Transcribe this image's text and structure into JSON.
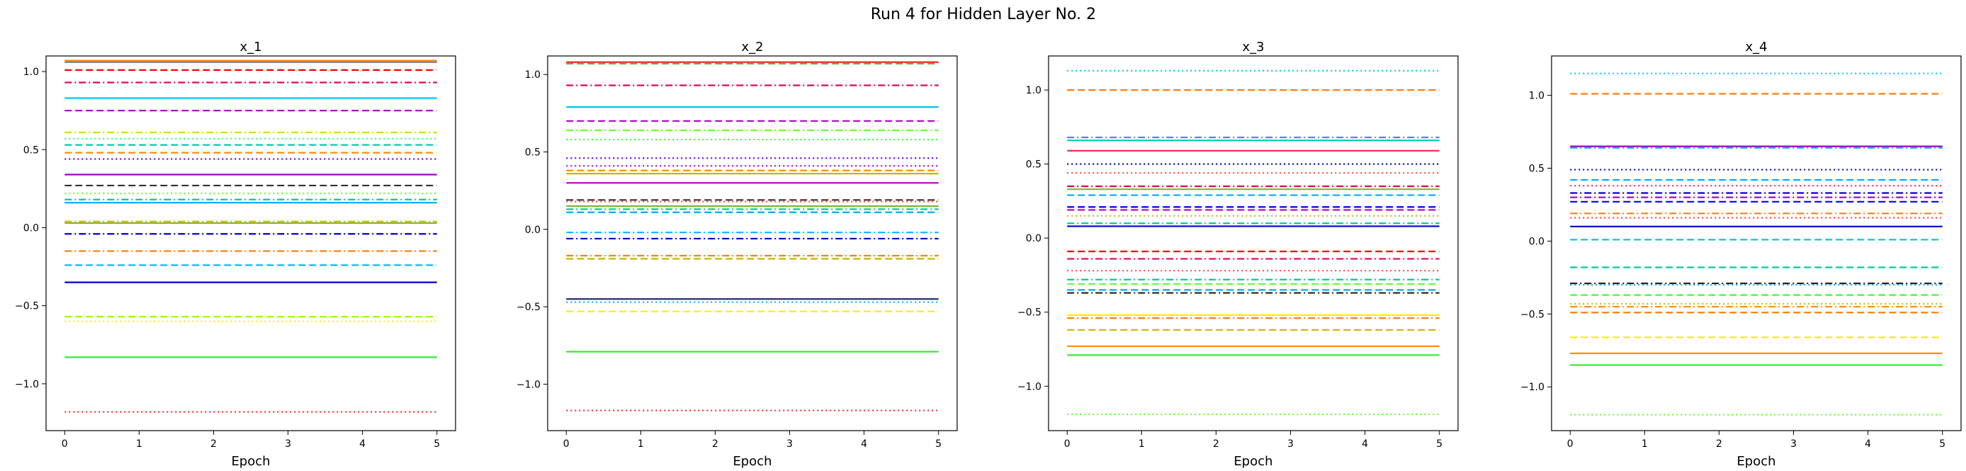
{
  "figure": {
    "title": "Run 4 for Hidden Layer No. 2"
  },
  "chart_data": [
    {
      "type": "line",
      "title": "x_1",
      "xlabel": "Epoch",
      "ylabel": "",
      "xlim": [
        -0.25,
        5.25
      ],
      "ylim": [
        -1.3,
        1.1
      ],
      "xticks": [
        0,
        1,
        2,
        3,
        4,
        5
      ],
      "yticks": [
        -1.0,
        -0.5,
        0.0,
        0.5,
        1.0
      ],
      "yticklabels": [
        "−1.0",
        "−0.5",
        "0.0",
        "0.5",
        "1.0"
      ],
      "x": [
        0,
        5
      ],
      "grid": false,
      "series": [
        {
          "values": [
            1.07,
            1.07
          ],
          "color": "#ff7f0e",
          "style": "solid"
        },
        {
          "values": [
            1.06,
            1.06
          ],
          "color": "#7f7f7f",
          "style": "solid"
        },
        {
          "values": [
            1.01,
            1.01
          ],
          "color": "#ff0000",
          "style": "dashed"
        },
        {
          "values": [
            0.93,
            0.93
          ],
          "color": "#e6005c",
          "style": "dashdot"
        },
        {
          "values": [
            0.83,
            0.83
          ],
          "color": "#00c8ff",
          "style": "solid"
        },
        {
          "values": [
            0.75,
            0.75
          ],
          "color": "#b000c8",
          "style": "dashed"
        },
        {
          "values": [
            0.61,
            0.61
          ],
          "color": "#c8e600",
          "style": "dashdot"
        },
        {
          "values": [
            0.57,
            0.57
          ],
          "color": "#33ff66",
          "style": "dotted"
        },
        {
          "values": [
            0.53,
            0.53
          ],
          "color": "#00ccaa",
          "style": "dashed"
        },
        {
          "values": [
            0.48,
            0.48
          ],
          "color": "#ff8c00",
          "style": "dashed"
        },
        {
          "values": [
            0.44,
            0.44
          ],
          "color": "#6600ff",
          "style": "dotted"
        },
        {
          "values": [
            0.34,
            0.34
          ],
          "color": "#9900cc",
          "style": "solid"
        },
        {
          "values": [
            0.27,
            0.27
          ],
          "color": "#333333",
          "style": "dashed"
        },
        {
          "values": [
            0.22,
            0.22
          ],
          "color": "#66ff33",
          "style": "dotted"
        },
        {
          "values": [
            0.18,
            0.18
          ],
          "color": "#00cc99",
          "style": "dashdot"
        },
        {
          "values": [
            0.16,
            0.16
          ],
          "color": "#00aaff",
          "style": "solid"
        },
        {
          "values": [
            0.04,
            0.04
          ],
          "color": "#e6b800",
          "style": "dashdot"
        },
        {
          "values": [
            0.03,
            0.03
          ],
          "color": "#77bb33",
          "style": "solid"
        },
        {
          "values": [
            -0.04,
            -0.04
          ],
          "color": "#0000cc",
          "style": "dashdot"
        },
        {
          "values": [
            -0.15,
            -0.15
          ],
          "color": "#ff7f0e",
          "style": "dashdot"
        },
        {
          "values": [
            -0.24,
            -0.24
          ],
          "color": "#00bbff",
          "style": "dashed"
        },
        {
          "values": [
            -0.35,
            -0.35
          ],
          "color": "#0000cc",
          "style": "solid"
        },
        {
          "values": [
            -0.57,
            -0.57
          ],
          "color": "#99ff00",
          "style": "dashed"
        },
        {
          "values": [
            -0.6,
            -0.6
          ],
          "color": "#ffee00",
          "style": "dotted"
        },
        {
          "values": [
            -0.83,
            -0.83
          ],
          "color": "#33ee33",
          "style": "solid"
        },
        {
          "values": [
            -1.18,
            -1.18
          ],
          "color": "#ff2222",
          "style": "dotted"
        }
      ]
    },
    {
      "type": "line",
      "title": "x_2",
      "xlabel": "Epoch",
      "ylabel": "",
      "xlim": [
        -0.25,
        5.25
      ],
      "ylim": [
        -1.3,
        1.12
      ],
      "xticks": [
        0,
        1,
        2,
        3,
        4,
        5
      ],
      "yticks": [
        -1.0,
        -0.5,
        0.0,
        0.5,
        1.0
      ],
      "yticklabels": [
        "−1.0",
        "−0.5",
        "0.0",
        "0.5",
        "1.0"
      ],
      "x": [
        0,
        5
      ],
      "grid": false,
      "series": [
        {
          "values": [
            1.08,
            1.08
          ],
          "color": "#ff2222",
          "style": "solid"
        },
        {
          "values": [
            1.07,
            1.07
          ],
          "color": "#33cc33",
          "style": "dashed"
        },
        {
          "values": [
            0.93,
            0.93
          ],
          "color": "#e6005c",
          "style": "dashdot"
        },
        {
          "values": [
            0.79,
            0.79
          ],
          "color": "#00c8e6",
          "style": "solid"
        },
        {
          "values": [
            0.7,
            0.7
          ],
          "color": "#b000c8",
          "style": "dashed"
        },
        {
          "values": [
            0.64,
            0.64
          ],
          "color": "#66ff33",
          "style": "dashdot"
        },
        {
          "values": [
            0.58,
            0.58
          ],
          "color": "#33ff33",
          "style": "dotted"
        },
        {
          "values": [
            0.46,
            0.46
          ],
          "color": "#6600ff",
          "style": "dotted"
        },
        {
          "values": [
            0.41,
            0.41
          ],
          "color": "#9900ff",
          "style": "dotted"
        },
        {
          "values": [
            0.38,
            0.38
          ],
          "color": "#ff8c00",
          "style": "dashed"
        },
        {
          "values": [
            0.36,
            0.36
          ],
          "color": "#c8b400",
          "style": "solid"
        },
        {
          "values": [
            0.3,
            0.3
          ],
          "color": "#cc00cc",
          "style": "solid"
        },
        {
          "values": [
            0.19,
            0.19
          ],
          "color": "#333333",
          "style": "dashed"
        },
        {
          "values": [
            0.18,
            0.18
          ],
          "color": "#ff4444",
          "style": "dotted"
        },
        {
          "values": [
            0.15,
            0.15
          ],
          "color": "#77bb33",
          "style": "solid"
        },
        {
          "values": [
            0.13,
            0.13
          ],
          "color": "#00cc99",
          "style": "dashdot"
        },
        {
          "values": [
            0.11,
            0.11
          ],
          "color": "#00aaff",
          "style": "dashed"
        },
        {
          "values": [
            -0.02,
            -0.02
          ],
          "color": "#00bbff",
          "style": "dashdot"
        },
        {
          "values": [
            -0.06,
            -0.06
          ],
          "color": "#0000cc",
          "style": "dashdot"
        },
        {
          "values": [
            -0.17,
            -0.17
          ],
          "color": "#ff7f0e",
          "style": "dashdot"
        },
        {
          "values": [
            -0.19,
            -0.19
          ],
          "color": "#bbbb00",
          "style": "dashed"
        },
        {
          "values": [
            -0.45,
            -0.45
          ],
          "color": "#222266",
          "style": "solid"
        },
        {
          "values": [
            -0.47,
            -0.47
          ],
          "color": "#00aaff",
          "style": "dotted"
        },
        {
          "values": [
            -0.53,
            -0.53
          ],
          "color": "#ffee00",
          "style": "dashed"
        },
        {
          "values": [
            -0.79,
            -0.79
          ],
          "color": "#33ee33",
          "style": "solid"
        },
        {
          "values": [
            -1.17,
            -1.17
          ],
          "color": "#ff2222",
          "style": "dotted"
        }
      ]
    },
    {
      "type": "line",
      "title": "x_3",
      "xlabel": "Epoch",
      "ylabel": "",
      "xlim": [
        -0.25,
        5.25
      ],
      "ylim": [
        -1.3,
        1.23
      ],
      "xticks": [
        0,
        1,
        2,
        3,
        4,
        5
      ],
      "yticks": [
        -1.0,
        -0.5,
        0.0,
        0.5,
        1.0
      ],
      "yticklabels": [
        "−1.0",
        "−0.5",
        "0.0",
        "0.5",
        "1.0"
      ],
      "x": [
        0,
        5
      ],
      "grid": false,
      "series": [
        {
          "values": [
            1.13,
            1.13
          ],
          "color": "#00c8ff",
          "style": "dotted"
        },
        {
          "values": [
            1.0,
            1.0
          ],
          "color": "#ff7f0e",
          "style": "dashed"
        },
        {
          "values": [
            0.68,
            0.68
          ],
          "color": "#4488ff",
          "style": "dashdot"
        },
        {
          "values": [
            0.66,
            0.66
          ],
          "color": "#00ccaa",
          "style": "solid"
        },
        {
          "values": [
            0.59,
            0.59
          ],
          "color": "#ff2244",
          "style": "solid"
        },
        {
          "values": [
            0.5,
            0.5
          ],
          "color": "#0000aa",
          "style": "dotted"
        },
        {
          "values": [
            0.44,
            0.44
          ],
          "color": "#ff4444",
          "style": "dotted"
        },
        {
          "values": [
            0.35,
            0.35
          ],
          "color": "#e6005c",
          "style": "dashdot"
        },
        {
          "values": [
            0.33,
            0.33
          ],
          "color": "#77bb33",
          "style": "solid"
        },
        {
          "values": [
            0.29,
            0.29
          ],
          "color": "#00aaff",
          "style": "dashed"
        },
        {
          "values": [
            0.21,
            0.21
          ],
          "color": "#0000ff",
          "style": "dashed"
        },
        {
          "values": [
            0.19,
            0.19
          ],
          "color": "#b000c8",
          "style": "dashed"
        },
        {
          "values": [
            0.15,
            0.15
          ],
          "color": "#c8b400",
          "style": "dotted"
        },
        {
          "values": [
            0.1,
            0.1
          ],
          "color": "#00cc99",
          "style": "dashdot"
        },
        {
          "values": [
            0.08,
            0.08
          ],
          "color": "#0000cc",
          "style": "solid"
        },
        {
          "values": [
            -0.09,
            -0.09
          ],
          "color": "#ff0000",
          "style": "dashed"
        },
        {
          "values": [
            -0.14,
            -0.14
          ],
          "color": "#e6005c",
          "style": "dashdot"
        },
        {
          "values": [
            -0.22,
            -0.22
          ],
          "color": "#ff4444",
          "style": "dotted"
        },
        {
          "values": [
            -0.28,
            -0.28
          ],
          "color": "#00cc99",
          "style": "dashdot"
        },
        {
          "values": [
            -0.31,
            -0.31
          ],
          "color": "#66ff33",
          "style": "dashed"
        },
        {
          "values": [
            -0.35,
            -0.35
          ],
          "color": "#00aaff",
          "style": "dashed"
        },
        {
          "values": [
            -0.37,
            -0.37
          ],
          "color": "#222222",
          "style": "dashdot"
        },
        {
          "values": [
            -0.52,
            -0.52
          ],
          "color": "#ffee00",
          "style": "solid"
        },
        {
          "values": [
            -0.54,
            -0.54
          ],
          "color": "#ff7f0e",
          "style": "dashdot"
        },
        {
          "values": [
            -0.62,
            -0.62
          ],
          "color": "#c8b400",
          "style": "dashed"
        },
        {
          "values": [
            -0.73,
            -0.73
          ],
          "color": "#ff8c00",
          "style": "solid"
        },
        {
          "values": [
            -0.79,
            -0.79
          ],
          "color": "#33ee33",
          "style": "solid"
        },
        {
          "values": [
            -1.19,
            -1.19
          ],
          "color": "#66ff33",
          "style": "dotted"
        }
      ]
    },
    {
      "type": "line",
      "title": "x_4",
      "xlabel": "Epoch",
      "ylabel": "",
      "xlim": [
        -0.25,
        5.25
      ],
      "ylim": [
        -1.3,
        1.27
      ],
      "xticks": [
        0,
        1,
        2,
        3,
        4,
        5
      ],
      "yticks": [
        -1.0,
        -0.5,
        0.0,
        0.5,
        1.0
      ],
      "yticklabels": [
        "−1.0",
        "−0.5",
        "0.0",
        "0.5",
        "1.0"
      ],
      "x": [
        0,
        5
      ],
      "grid": false,
      "series": [
        {
          "values": [
            1.15,
            1.15
          ],
          "color": "#00c8ff",
          "style": "dotted"
        },
        {
          "values": [
            1.01,
            1.01
          ],
          "color": "#ff7f0e",
          "style": "dashed"
        },
        {
          "values": [
            0.65,
            0.65
          ],
          "color": "#9900cc",
          "style": "solid"
        },
        {
          "values": [
            0.64,
            0.64
          ],
          "color": "#00aaff",
          "style": "dashdot"
        },
        {
          "values": [
            0.49,
            0.49
          ],
          "color": "#0000aa",
          "style": "dotted"
        },
        {
          "values": [
            0.42,
            0.42
          ],
          "color": "#00aaff",
          "style": "dashed"
        },
        {
          "values": [
            0.38,
            0.38
          ],
          "color": "#ff2244",
          "style": "dotted"
        },
        {
          "values": [
            0.33,
            0.33
          ],
          "color": "#0000cc",
          "style": "dashdot"
        },
        {
          "values": [
            0.3,
            0.3
          ],
          "color": "#b000c8",
          "style": "dashdot"
        },
        {
          "values": [
            0.27,
            0.27
          ],
          "color": "#0000ff",
          "style": "dashed"
        },
        {
          "values": [
            0.19,
            0.19
          ],
          "color": "#ff7f0e",
          "style": "dashdot"
        },
        {
          "values": [
            0.16,
            0.16
          ],
          "color": "#ff4444",
          "style": "dotted"
        },
        {
          "values": [
            0.1,
            0.1
          ],
          "color": "#0000cc",
          "style": "solid"
        },
        {
          "values": [
            0.01,
            0.01
          ],
          "color": "#00cccc",
          "style": "dashed"
        },
        {
          "values": [
            -0.18,
            -0.18
          ],
          "color": "#00cc99",
          "style": "dashed"
        },
        {
          "values": [
            -0.29,
            -0.29
          ],
          "color": "#222222",
          "style": "dashdot"
        },
        {
          "values": [
            -0.3,
            -0.3
          ],
          "color": "#00aaff",
          "style": "dotted"
        },
        {
          "values": [
            -0.37,
            -0.37
          ],
          "color": "#33ff33",
          "style": "dashed"
        },
        {
          "values": [
            -0.43,
            -0.43
          ],
          "color": "#c8b400",
          "style": "dotted"
        },
        {
          "values": [
            -0.45,
            -0.45
          ],
          "color": "#ff8c00",
          "style": "dashdot"
        },
        {
          "values": [
            -0.49,
            -0.49
          ],
          "color": "#ff7f0e",
          "style": "dashed"
        },
        {
          "values": [
            -0.66,
            -0.66
          ],
          "color": "#ffee00",
          "style": "dashed"
        },
        {
          "values": [
            -0.77,
            -0.77
          ],
          "color": "#ff8c00",
          "style": "solid"
        },
        {
          "values": [
            -0.85,
            -0.85
          ],
          "color": "#33ee33",
          "style": "solid"
        },
        {
          "values": [
            -1.19,
            -1.19
          ],
          "color": "#66ff33",
          "style": "dotted"
        }
      ]
    }
  ]
}
